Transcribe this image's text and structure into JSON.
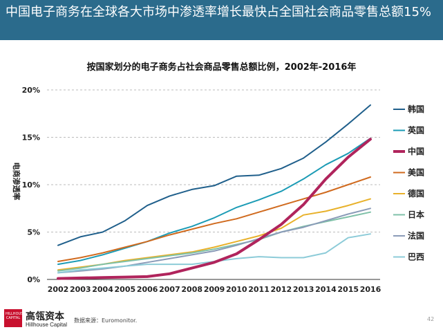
{
  "header": {
    "title": "中国电子商务在全球各大市场中渗透率增长最快占全国社会商品零售总额15%"
  },
  "colors": {
    "header_bg": "#2b6b8c",
    "brand_red": "#c8102e"
  },
  "chart_data": {
    "type": "line",
    "title": "按国家划分的电子商务占社会商品零售总额比例，2002年-2016年",
    "xlabel": "",
    "ylabel": "电商渗透率",
    "ylim": [
      0,
      20
    ],
    "y_ticks": [
      "0%",
      "5%",
      "10%",
      "15%",
      "20%"
    ],
    "categories": [
      "2002",
      "2003",
      "2004",
      "2005",
      "2006",
      "2007",
      "2008",
      "2009",
      "2010",
      "2011",
      "2012",
      "2013",
      "2014",
      "2015",
      "2016"
    ],
    "grid": "horizontal dashed",
    "legend_position": "right",
    "series": [
      {
        "name": "韩国",
        "color": "#1f5f8b",
        "width": 2,
        "values": [
          3.6,
          4.5,
          5.0,
          6.2,
          7.8,
          8.8,
          9.5,
          9.9,
          10.9,
          11.0,
          11.7,
          12.8,
          14.5,
          16.4,
          18.4
        ]
      },
      {
        "name": "英国",
        "color": "#1b9bb5",
        "width": 2,
        "values": [
          1.6,
          2.0,
          2.6,
          3.3,
          4.0,
          4.9,
          5.6,
          6.5,
          7.6,
          8.4,
          9.3,
          10.6,
          12.1,
          13.3,
          14.9
        ]
      },
      {
        "name": "中国",
        "color": "#b0245c",
        "width": 4,
        "values": [
          0.1,
          0.15,
          0.2,
          0.25,
          0.3,
          0.6,
          1.2,
          1.8,
          2.7,
          4.2,
          5.8,
          7.9,
          10.6,
          12.9,
          14.8
        ]
      },
      {
        "name": "美国",
        "color": "#d06a1e",
        "width": 2,
        "values": [
          1.9,
          2.3,
          2.8,
          3.4,
          4.0,
          4.7,
          5.3,
          5.9,
          6.4,
          7.1,
          7.8,
          8.5,
          9.2,
          10.0,
          10.8
        ]
      },
      {
        "name": "德国",
        "color": "#e8b12a",
        "width": 2,
        "values": [
          1.0,
          1.3,
          1.6,
          2.0,
          2.3,
          2.6,
          2.9,
          3.4,
          4.0,
          4.6,
          5.4,
          6.8,
          7.2,
          7.8,
          8.5
        ]
      },
      {
        "name": "日本",
        "color": "#7fc1a8",
        "width": 2,
        "values": [
          0.9,
          1.2,
          1.6,
          1.9,
          2.2,
          2.5,
          2.8,
          3.2,
          3.7,
          4.2,
          5.0,
          5.6,
          6.1,
          6.6,
          7.1
        ]
      },
      {
        "name": "法国",
        "color": "#8a9bb8",
        "width": 2,
        "values": [
          0.7,
          0.9,
          1.1,
          1.4,
          1.8,
          2.2,
          2.6,
          3.0,
          3.6,
          4.3,
          5.0,
          5.5,
          6.2,
          6.9,
          7.5
        ]
      },
      {
        "name": "巴西",
        "color": "#8ccbd8",
        "width": 2,
        "values": [
          0.7,
          1.0,
          1.2,
          1.4,
          1.6,
          1.6,
          1.6,
          1.9,
          2.2,
          2.4,
          2.3,
          2.3,
          2.8,
          4.4,
          4.8
        ]
      }
    ]
  },
  "footer": {
    "logo_text": "HILLHOUSE CAPITAL",
    "brand_cn": "高瓴资本",
    "brand_en": "Hillhouse Capital",
    "source": "数据来源：Euromonitor.",
    "page": "42"
  }
}
